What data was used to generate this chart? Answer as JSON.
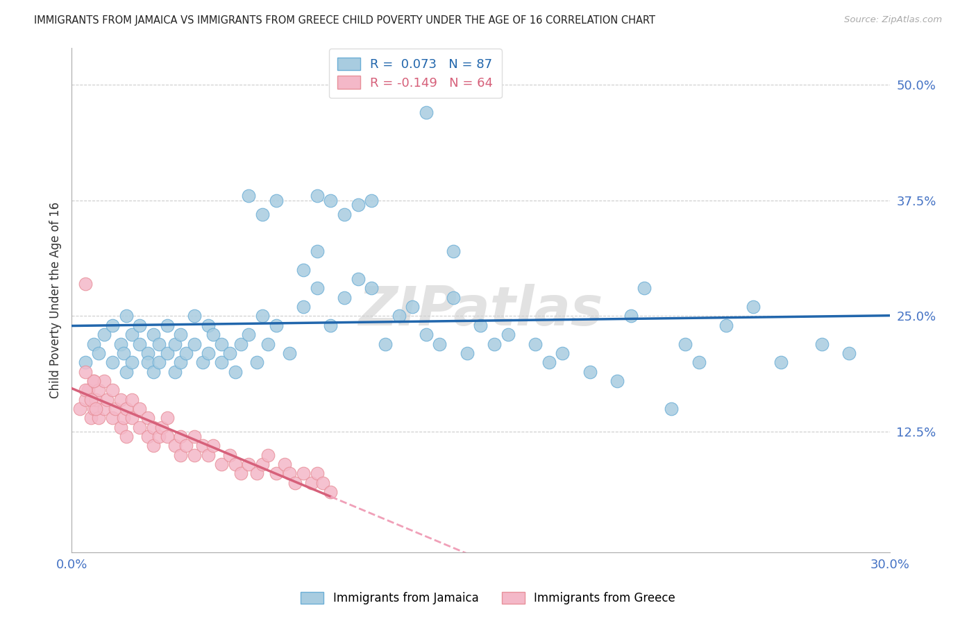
{
  "title": "IMMIGRANTS FROM JAMAICA VS IMMIGRANTS FROM GREECE CHILD POVERTY UNDER THE AGE OF 16 CORRELATION CHART",
  "source": "Source: ZipAtlas.com",
  "ylabel": "Child Poverty Under the Age of 16",
  "ytick_labels": [
    "12.5%",
    "25.0%",
    "37.5%",
    "50.0%"
  ],
  "ytick_values": [
    0.125,
    0.25,
    0.375,
    0.5
  ],
  "xlim": [
    0.0,
    0.3
  ],
  "ylim": [
    -0.005,
    0.54
  ],
  "r_jamaica": 0.073,
  "n_jamaica": 87,
  "r_greece": -0.149,
  "n_greece": 64,
  "color_jamaica": "#a8cce0",
  "color_greece": "#f4b8c8",
  "color_jamaica_edge": "#6baed6",
  "color_greece_edge": "#e8909a",
  "color_jamaica_line": "#2166ac",
  "color_greece_line_solid": "#d6607a",
  "color_greece_line_dash": "#f0a0b8",
  "watermark": "ZIPatlas",
  "background_color": "#ffffff",
  "grid_color": "#cccccc",
  "title_color": "#222222",
  "axis_color": "#4472c4",
  "jamaica_x": [
    0.005,
    0.008,
    0.01,
    0.012,
    0.015,
    0.015,
    0.018,
    0.019,
    0.02,
    0.02,
    0.022,
    0.022,
    0.025,
    0.025,
    0.028,
    0.028,
    0.03,
    0.03,
    0.032,
    0.032,
    0.035,
    0.035,
    0.038,
    0.038,
    0.04,
    0.04,
    0.042,
    0.045,
    0.045,
    0.048,
    0.05,
    0.05,
    0.052,
    0.055,
    0.055,
    0.058,
    0.06,
    0.062,
    0.065,
    0.068,
    0.07,
    0.072,
    0.075,
    0.08,
    0.085,
    0.085,
    0.09,
    0.09,
    0.095,
    0.1,
    0.105,
    0.11,
    0.115,
    0.12,
    0.125,
    0.13,
    0.135,
    0.14,
    0.145,
    0.15,
    0.155,
    0.16,
    0.17,
    0.175,
    0.18,
    0.19,
    0.2,
    0.205,
    0.21,
    0.22,
    0.225,
    0.23,
    0.24,
    0.25,
    0.26,
    0.275,
    0.285,
    0.09,
    0.095,
    0.1,
    0.105,
    0.11,
    0.065,
    0.07,
    0.075,
    0.13,
    0.14
  ],
  "jamaica_y": [
    0.2,
    0.22,
    0.21,
    0.23,
    0.24,
    0.2,
    0.22,
    0.21,
    0.25,
    0.19,
    0.23,
    0.2,
    0.22,
    0.24,
    0.21,
    0.2,
    0.23,
    0.19,
    0.22,
    0.2,
    0.21,
    0.24,
    0.19,
    0.22,
    0.23,
    0.2,
    0.21,
    0.25,
    0.22,
    0.2,
    0.24,
    0.21,
    0.23,
    0.22,
    0.2,
    0.21,
    0.19,
    0.22,
    0.23,
    0.2,
    0.25,
    0.22,
    0.24,
    0.21,
    0.3,
    0.26,
    0.32,
    0.28,
    0.24,
    0.27,
    0.29,
    0.28,
    0.22,
    0.25,
    0.26,
    0.23,
    0.22,
    0.27,
    0.21,
    0.24,
    0.22,
    0.23,
    0.22,
    0.2,
    0.21,
    0.19,
    0.18,
    0.25,
    0.28,
    0.15,
    0.22,
    0.2,
    0.24,
    0.26,
    0.2,
    0.22,
    0.21,
    0.38,
    0.375,
    0.36,
    0.37,
    0.375,
    0.38,
    0.36,
    0.375,
    0.47,
    0.32
  ],
  "greece_x": [
    0.003,
    0.005,
    0.006,
    0.007,
    0.008,
    0.008,
    0.009,
    0.01,
    0.01,
    0.012,
    0.012,
    0.013,
    0.015,
    0.015,
    0.016,
    0.018,
    0.018,
    0.019,
    0.02,
    0.02,
    0.022,
    0.022,
    0.025,
    0.025,
    0.028,
    0.028,
    0.03,
    0.03,
    0.032,
    0.033,
    0.035,
    0.035,
    0.038,
    0.04,
    0.04,
    0.042,
    0.045,
    0.045,
    0.048,
    0.05,
    0.052,
    0.055,
    0.058,
    0.06,
    0.062,
    0.065,
    0.068,
    0.07,
    0.072,
    0.075,
    0.078,
    0.08,
    0.082,
    0.085,
    0.088,
    0.09,
    0.092,
    0.095,
    0.005,
    0.007,
    0.008,
    0.009,
    0.005,
    0.005
  ],
  "greece_y": [
    0.15,
    0.16,
    0.17,
    0.14,
    0.18,
    0.15,
    0.16,
    0.17,
    0.14,
    0.15,
    0.18,
    0.16,
    0.17,
    0.14,
    0.15,
    0.16,
    0.13,
    0.14,
    0.15,
    0.12,
    0.14,
    0.16,
    0.15,
    0.13,
    0.14,
    0.12,
    0.13,
    0.11,
    0.12,
    0.13,
    0.12,
    0.14,
    0.11,
    0.12,
    0.1,
    0.11,
    0.1,
    0.12,
    0.11,
    0.1,
    0.11,
    0.09,
    0.1,
    0.09,
    0.08,
    0.09,
    0.08,
    0.09,
    0.1,
    0.08,
    0.09,
    0.08,
    0.07,
    0.08,
    0.07,
    0.08,
    0.07,
    0.06,
    0.17,
    0.16,
    0.18,
    0.15,
    0.19,
    0.285
  ]
}
